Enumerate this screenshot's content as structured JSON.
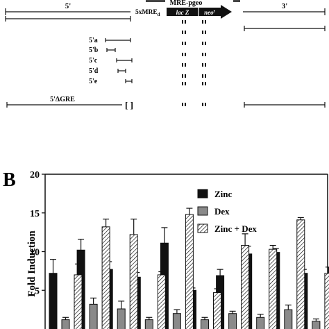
{
  "panel_a": {
    "top_fragments": [
      "",
      "",
      "",
      "",
      ""
    ],
    "label_5prime": "5'",
    "label_3prime": "3'",
    "mre_label": "5xMRE",
    "mre_subscript": "d",
    "cassette_title": "MRE-pgeo",
    "lacz_label": "lac Z",
    "neo_label": "neo",
    "neo_superscript": "r",
    "deletions": [
      "5'a",
      "5'b",
      "5'c",
      "5'd",
      "5'e"
    ],
    "delta_gre_label": "5'ΔGRE",
    "bracket_label": "[ ]"
  },
  "panel_b": {
    "panel_label": "B"
  },
  "chart_data": {
    "type": "bar",
    "ylabel": "Fold Induction",
    "ylim": [
      0,
      20
    ],
    "yticks": [
      5,
      10,
      15,
      20
    ],
    "groups": 10,
    "series": [
      {
        "name": "Zinc",
        "pattern": "solid",
        "color": "#111111",
        "values": [
          7.2,
          10.2,
          7.7,
          6.7,
          11.1,
          5.0,
          6.9,
          9.7,
          9.9,
          7.2
        ],
        "errors": [
          1.8,
          1.4,
          1.0,
          0.6,
          2.0,
          0.3,
          0.8,
          1.0,
          0.5,
          0.5
        ]
      },
      {
        "name": "Dex",
        "pattern": "gray",
        "color": "#8a8a8a",
        "values": [
          1.2,
          3.2,
          2.6,
          1.2,
          2.0,
          1.2,
          2.0,
          1.5,
          2.5,
          1.0
        ],
        "errors": [
          0.3,
          0.8,
          1.0,
          0.3,
          0.5,
          0.3,
          0.3,
          0.4,
          0.6,
          0.3
        ]
      },
      {
        "name": "Zinc + Dex",
        "pattern": "hatched",
        "color": "#ffffff",
        "values": [
          7.0,
          13.2,
          12.2,
          7.0,
          14.8,
          4.7,
          10.8,
          10.3,
          14.1,
          7.2
        ],
        "errors": [
          1.4,
          1.0,
          2.0,
          0.4,
          0.8,
          0.5,
          1.5,
          0.5,
          0.3,
          0.8
        ]
      }
    ]
  }
}
